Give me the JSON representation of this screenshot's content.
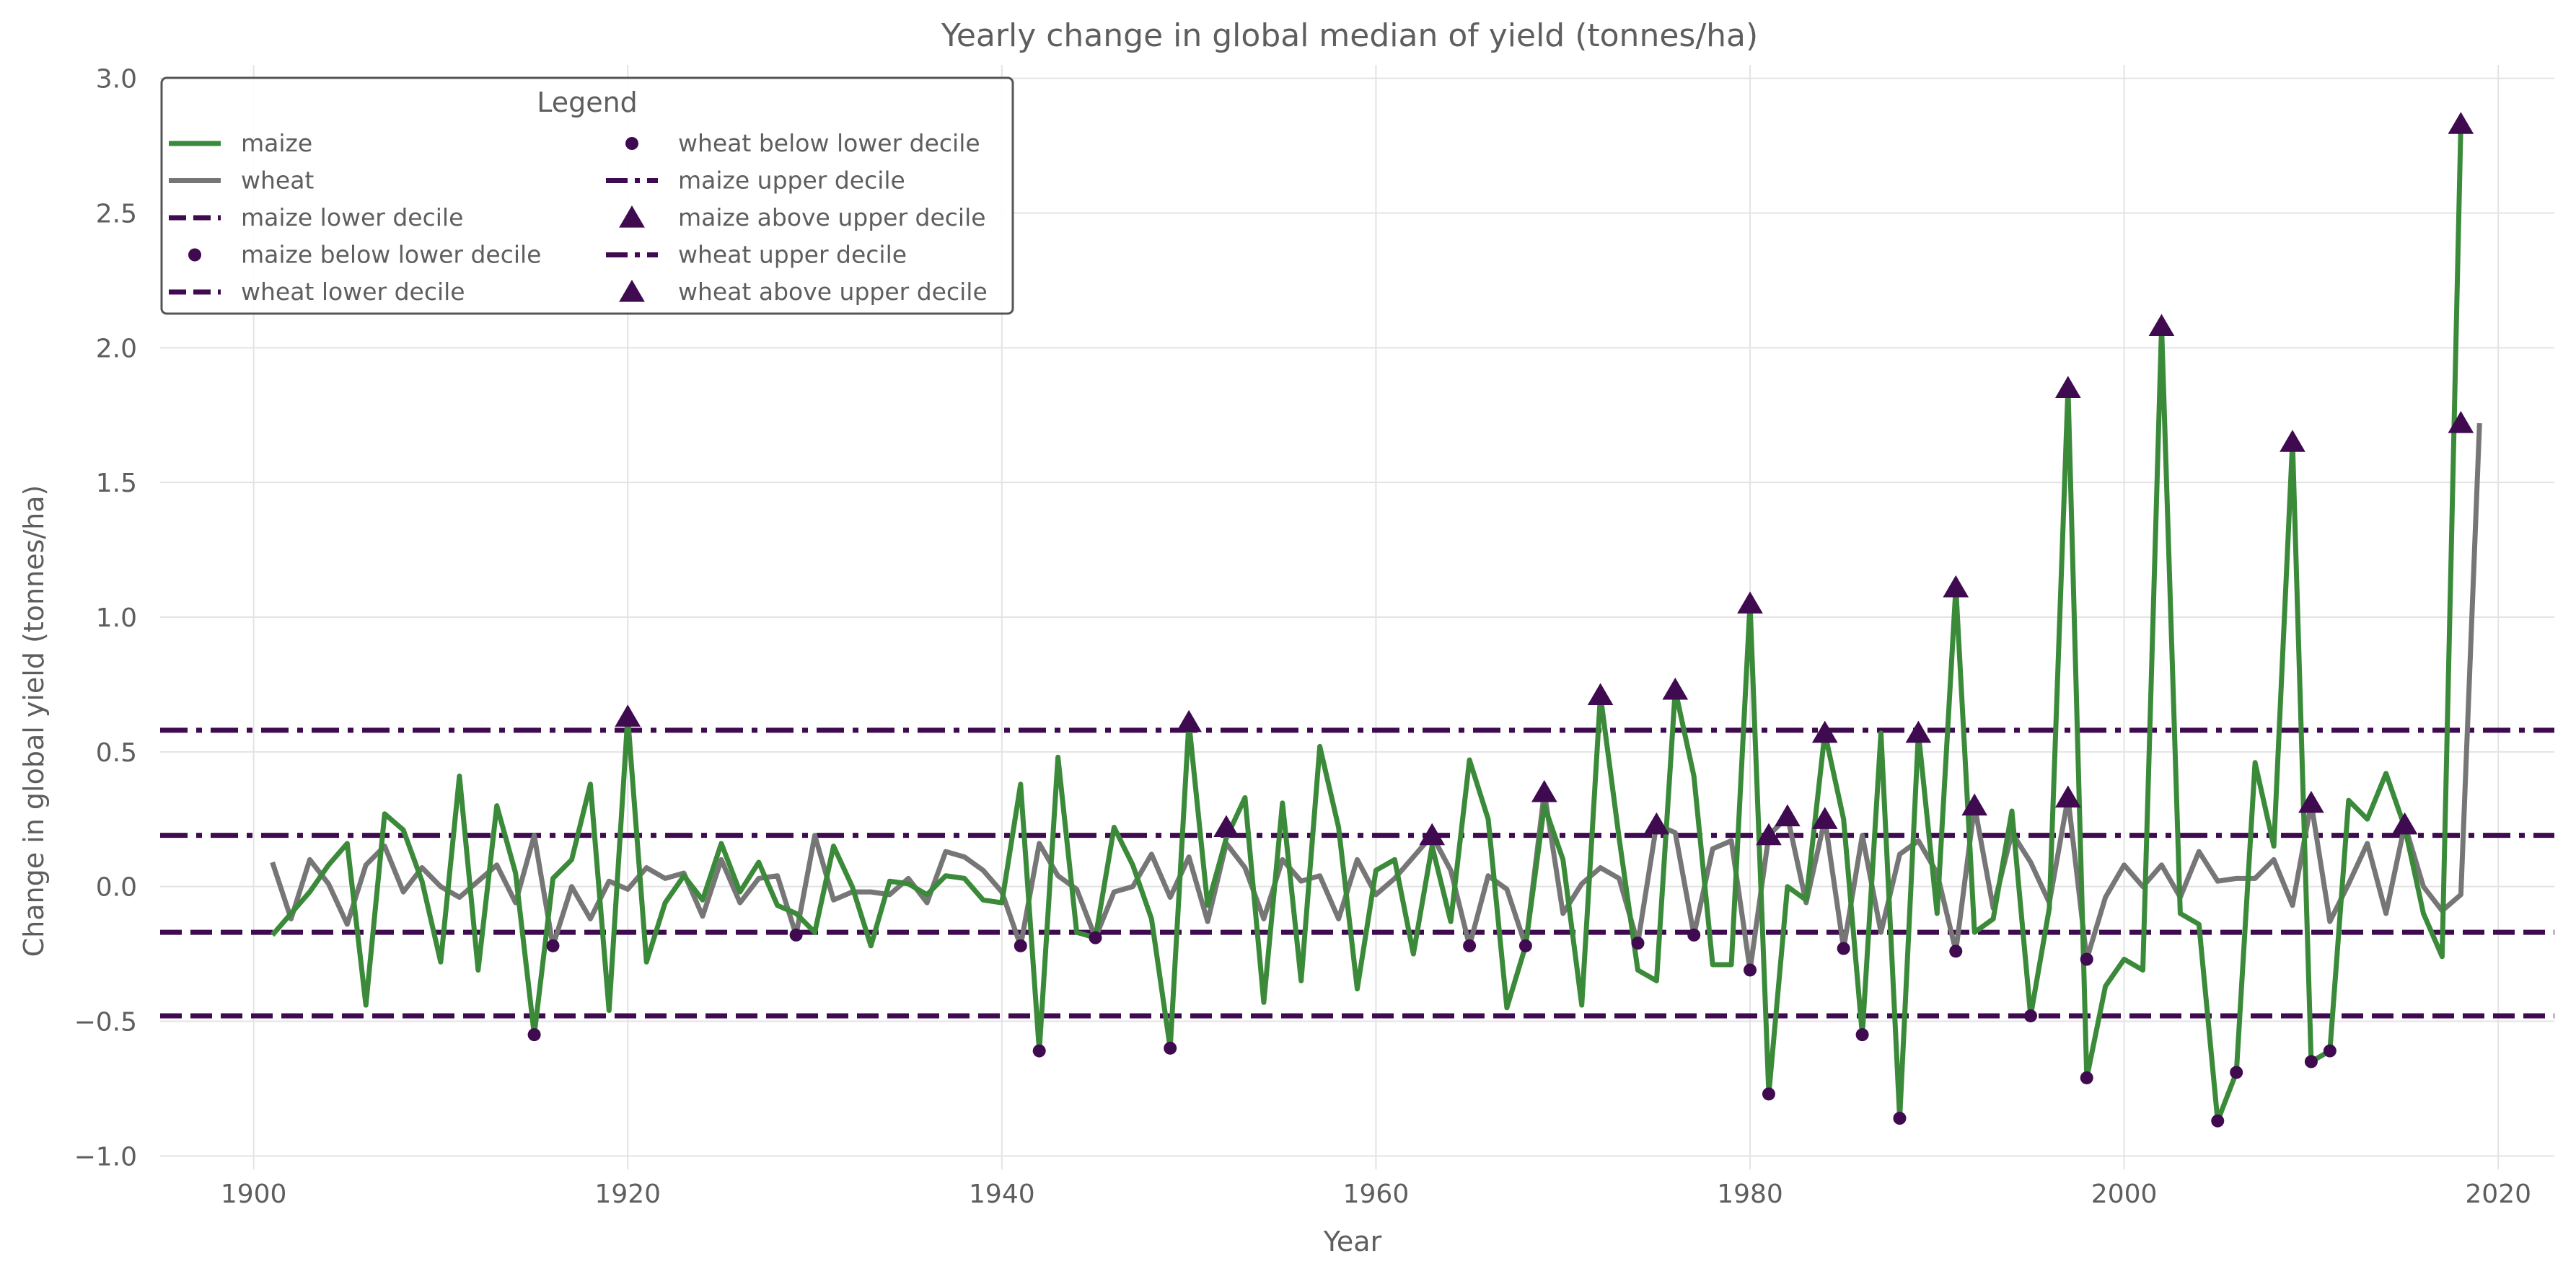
{
  "chart_data": {
    "type": "line",
    "title": "Yearly change in global median of yield (tonnes/ha)",
    "xlabel": "Year",
    "ylabel": "Change in global yield (tonnes/ha)",
    "xlim": [
      1895,
      2023
    ],
    "ylim": [
      -1.05,
      3.05
    ],
    "xticks": [
      1900,
      1920,
      1940,
      1960,
      1980,
      2000,
      2020
    ],
    "yticks": [
      -1.0,
      -0.5,
      0.0,
      0.5,
      1.0,
      1.5,
      2.0,
      2.5,
      3.0
    ],
    "grid": true,
    "legend": {
      "title": "Legend",
      "position": "top-left",
      "entries": [
        {
          "label": "maize",
          "kind": "line",
          "color": "#3a8a3a"
        },
        {
          "label": "wheat",
          "kind": "line",
          "color": "#767676"
        },
        {
          "label": "maize lower decile",
          "kind": "dashed",
          "color": "#3f0a4f"
        },
        {
          "label": "maize below lower decile",
          "kind": "dot",
          "color": "#3f0a4f"
        },
        {
          "label": "wheat lower decile",
          "kind": "dashed",
          "color": "#3f0a4f"
        },
        {
          "label": "wheat below lower decile",
          "kind": "dot",
          "color": "#3f0a4f"
        },
        {
          "label": "maize upper decile",
          "kind": "dashdot",
          "color": "#3f0a4f"
        },
        {
          "label": "maize above upper decile",
          "kind": "triangle",
          "color": "#3f0a4f"
        },
        {
          "label": "wheat upper decile",
          "kind": "dashdot",
          "color": "#3f0a4f"
        },
        {
          "label": "wheat above upper decile",
          "kind": "triangle",
          "color": "#3f0a4f"
        }
      ]
    },
    "colors": {
      "maize": "#3a8a3a",
      "wheat": "#767676",
      "marker": "#3f0a4f"
    },
    "x_start": 1901,
    "series": [
      {
        "name": "maize",
        "values": [
          -0.18,
          -0.1,
          -0.02,
          0.08,
          0.16,
          -0.44,
          0.27,
          0.21,
          0.02,
          -0.28,
          0.41,
          -0.31,
          0.3,
          0.05,
          -0.55,
          0.03,
          0.1,
          0.38,
          -0.46,
          0.63,
          -0.28,
          -0.06,
          0.04,
          -0.05,
          0.16,
          -0.02,
          0.09,
          -0.07,
          -0.1,
          -0.17,
          0.15,
          0.0,
          -0.22,
          0.02,
          0.01,
          -0.03,
          0.04,
          0.03,
          -0.05,
          -0.06,
          0.38,
          -0.61,
          0.48,
          -0.17,
          -0.19,
          0.22,
          0.08,
          -0.12,
          -0.6,
          0.61,
          -0.07,
          0.18,
          0.33,
          -0.43,
          0.31,
          -0.35,
          0.52,
          0.22,
          -0.38,
          0.06,
          0.1,
          -0.25,
          0.15,
          -0.13,
          0.47,
          0.25,
          -0.45,
          -0.22,
          0.3,
          0.1,
          -0.44,
          0.71,
          0.18,
          -0.31,
          -0.35,
          0.73,
          0.41,
          -0.29,
          -0.29,
          1.05,
          -0.77,
          0.0,
          -0.05,
          0.57,
          0.25,
          -0.55,
          0.57,
          -0.86,
          0.57,
          -0.1,
          1.11,
          -0.17,
          -0.12,
          0.28,
          -0.48,
          -0.08,
          1.85,
          -0.71,
          -0.37,
          -0.27,
          -0.31,
          2.08,
          -0.1,
          -0.14,
          -0.87,
          -0.69,
          0.46,
          0.15,
          1.65,
          -0.65,
          -0.61,
          0.32,
          0.25,
          0.42,
          0.22,
          -0.1,
          -0.26,
          2.83
        ]
      },
      {
        "name": "wheat",
        "values": [
          0.09,
          -0.12,
          0.1,
          0.01,
          -0.14,
          0.08,
          0.15,
          -0.02,
          0.07,
          0.0,
          -0.04,
          0.02,
          0.08,
          -0.06,
          0.19,
          -0.22,
          0.0,
          -0.12,
          0.02,
          -0.01,
          0.07,
          0.03,
          0.05,
          -0.11,
          0.1,
          -0.06,
          0.03,
          0.04,
          -0.18,
          0.19,
          -0.05,
          -0.02,
          -0.02,
          -0.03,
          0.03,
          -0.06,
          0.13,
          0.11,
          0.06,
          -0.02,
          -0.22,
          0.16,
          0.04,
          -0.01,
          -0.19,
          -0.02,
          0.0,
          0.12,
          -0.04,
          0.11,
          -0.13,
          0.16,
          0.07,
          -0.12,
          0.1,
          0.02,
          0.04,
          -0.12,
          0.1,
          -0.03,
          0.03,
          0.11,
          0.19,
          0.06,
          -0.22,
          0.04,
          -0.01,
          -0.22,
          0.35,
          -0.1,
          0.01,
          0.07,
          0.03,
          -0.21,
          0.23,
          0.2,
          -0.18,
          0.14,
          0.17,
          -0.31,
          0.19,
          0.26,
          -0.06,
          0.25,
          -0.23,
          0.19,
          -0.17,
          0.12,
          0.17,
          0.05,
          -0.24,
          0.3,
          -0.08,
          0.2,
          0.09,
          -0.06,
          0.33,
          -0.27,
          -0.04,
          0.08,
          0.0,
          0.08,
          -0.04,
          0.13,
          0.02,
          0.03,
          0.03,
          0.1,
          -0.07,
          0.31,
          -0.13,
          0.01,
          0.16,
          -0.1,
          0.23,
          0.0,
          -0.09,
          -0.03,
          1.72
        ]
      }
    ],
    "reference_lines": [
      {
        "name": "maize upper decile",
        "value": 0.58,
        "style": "dashdot"
      },
      {
        "name": "wheat upper decile",
        "value": 0.19,
        "style": "dashdot"
      },
      {
        "name": "wheat lower decile",
        "value": -0.17,
        "style": "dashed"
      },
      {
        "name": "maize lower decile",
        "value": -0.48,
        "style": "dashed"
      }
    ],
    "below_lower_decile_points": [
      {
        "x": 1915,
        "y": -0.55
      },
      {
        "x": 1916,
        "y": -0.22
      },
      {
        "x": 1929,
        "y": -0.18
      },
      {
        "x": 1941,
        "y": -0.22
      },
      {
        "x": 1942,
        "y": -0.61
      },
      {
        "x": 1945,
        "y": -0.19
      },
      {
        "x": 1949,
        "y": -0.6
      },
      {
        "x": 1965,
        "y": -0.22
      },
      {
        "x": 1968,
        "y": -0.22
      },
      {
        "x": 1974,
        "y": -0.21
      },
      {
        "x": 1977,
        "y": -0.18
      },
      {
        "x": 1980,
        "y": -0.31
      },
      {
        "x": 1981,
        "y": -0.77
      },
      {
        "x": 1985,
        "y": -0.23
      },
      {
        "x": 1986,
        "y": -0.55
      },
      {
        "x": 1988,
        "y": -0.86
      },
      {
        "x": 1991,
        "y": -0.24
      },
      {
        "x": 1995,
        "y": -0.48
      },
      {
        "x": 1998,
        "y": -0.27
      },
      {
        "x": 1998,
        "y": -0.71
      },
      {
        "x": 2005,
        "y": -0.87
      },
      {
        "x": 2006,
        "y": -0.69
      },
      {
        "x": 2010,
        "y": -0.65
      },
      {
        "x": 2011,
        "y": -0.61
      }
    ],
    "above_upper_decile_points": [
      {
        "x": 1920,
        "y": 0.63
      },
      {
        "x": 1950,
        "y": 0.61
      },
      {
        "x": 1952,
        "y": 0.22
      },
      {
        "x": 1963,
        "y": 0.19
      },
      {
        "x": 1969,
        "y": 0.35
      },
      {
        "x": 1972,
        "y": 0.71
      },
      {
        "x": 1975,
        "y": 0.23
      },
      {
        "x": 1976,
        "y": 0.73
      },
      {
        "x": 1980,
        "y": 1.05
      },
      {
        "x": 1981,
        "y": 0.19
      },
      {
        "x": 1982,
        "y": 0.26
      },
      {
        "x": 1984,
        "y": 0.57
      },
      {
        "x": 1984,
        "y": 0.25
      },
      {
        "x": 1989,
        "y": 0.57
      },
      {
        "x": 1991,
        "y": 1.11
      },
      {
        "x": 1992,
        "y": 0.3
      },
      {
        "x": 1997,
        "y": 1.85
      },
      {
        "x": 1997,
        "y": 0.33
      },
      {
        "x": 2002,
        "y": 2.08
      },
      {
        "x": 2009,
        "y": 1.65
      },
      {
        "x": 2010,
        "y": 0.31
      },
      {
        "x": 2015,
        "y": 0.23
      },
      {
        "x": 2018,
        "y": 2.83
      },
      {
        "x": 2018,
        "y": 1.72
      }
    ]
  }
}
